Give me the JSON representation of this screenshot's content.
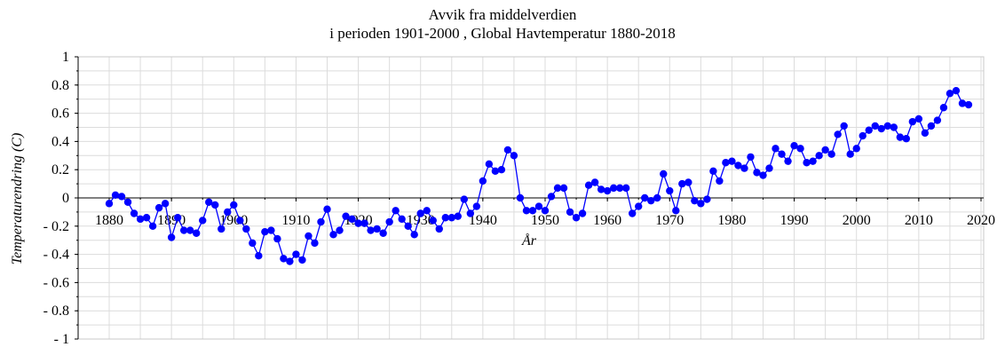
{
  "chart_data": {
    "type": "line",
    "title": "Avvik fra middelverdien",
    "subtitle": "i perioden 1901-2000 , Global Havtemperatur 1880-2018",
    "xlabel": "År",
    "ylabel": "Temperaturendring (C)",
    "xlim": [
      1880,
      2020
    ],
    "ylim": [
      -1,
      1
    ],
    "x_ticks": [
      "1880",
      "1890",
      "1900",
      "1910",
      "1920",
      "1930",
      "1940",
      "1950",
      "1960",
      "1970",
      "1980",
      "1990",
      "2000",
      "2010",
      "2020"
    ],
    "y_ticks": [
      "1",
      "0.8",
      "0.6",
      "0.4",
      "0.2",
      "0",
      "- 0.2",
      "- 0.4",
      "- 0.6",
      "- 0.8",
      "- 1"
    ],
    "grid": true,
    "line_color": "#0000ff",
    "marker_color": "#0000ff",
    "x": [
      1880,
      1881,
      1882,
      1883,
      1884,
      1885,
      1886,
      1887,
      1888,
      1889,
      1890,
      1891,
      1892,
      1893,
      1894,
      1895,
      1896,
      1897,
      1898,
      1899,
      1900,
      1901,
      1902,
      1903,
      1904,
      1905,
      1906,
      1907,
      1908,
      1909,
      1910,
      1911,
      1912,
      1913,
      1914,
      1915,
      1916,
      1917,
      1918,
      1919,
      1920,
      1921,
      1922,
      1923,
      1924,
      1925,
      1926,
      1927,
      1928,
      1929,
      1930,
      1931,
      1932,
      1933,
      1934,
      1935,
      1936,
      1937,
      1938,
      1939,
      1940,
      1941,
      1942,
      1943,
      1944,
      1945,
      1946,
      1947,
      1948,
      1949,
      1950,
      1951,
      1952,
      1953,
      1954,
      1955,
      1956,
      1957,
      1958,
      1959,
      1960,
      1961,
      1962,
      1963,
      1964,
      1965,
      1966,
      1967,
      1968,
      1969,
      1970,
      1971,
      1972,
      1973,
      1974,
      1975,
      1976,
      1977,
      1978,
      1979,
      1980,
      1981,
      1982,
      1983,
      1984,
      1985,
      1986,
      1987,
      1988,
      1989,
      1990,
      1991,
      1992,
      1993,
      1994,
      1995,
      1996,
      1997,
      1998,
      1999,
      2000,
      2001,
      2002,
      2003,
      2004,
      2005,
      2006,
      2007,
      2008,
      2009,
      2010,
      2011,
      2012,
      2013,
      2014,
      2015,
      2016,
      2017,
      2018
    ],
    "values": [
      -0.04,
      0.02,
      0.01,
      -0.03,
      -0.11,
      -0.15,
      -0.14,
      -0.2,
      -0.07,
      -0.04,
      -0.28,
      -0.14,
      -0.23,
      -0.23,
      -0.25,
      -0.16,
      -0.03,
      -0.05,
      -0.22,
      -0.1,
      -0.05,
      -0.16,
      -0.22,
      -0.32,
      -0.41,
      -0.24,
      -0.23,
      -0.29,
      -0.43,
      -0.45,
      -0.4,
      -0.44,
      -0.27,
      -0.32,
      -0.17,
      -0.08,
      -0.26,
      -0.23,
      -0.13,
      -0.15,
      -0.18,
      -0.18,
      -0.23,
      -0.22,
      -0.25,
      -0.17,
      -0.09,
      -0.15,
      -0.2,
      -0.26,
      -0.11,
      -0.09,
      -0.16,
      -0.22,
      -0.14,
      -0.14,
      -0.13,
      -0.01,
      -0.11,
      -0.06,
      0.12,
      0.24,
      0.19,
      0.2,
      0.34,
      0.3,
      0.0,
      -0.09,
      -0.09,
      -0.06,
      -0.09,
      0.01,
      0.07,
      0.07,
      -0.1,
      -0.14,
      -0.11,
      0.09,
      0.11,
      0.06,
      0.05,
      0.07,
      0.07,
      0.07,
      -0.11,
      -0.06,
      0.0,
      -0.02,
      0.0,
      0.17,
      0.05,
      -0.09,
      0.1,
      0.11,
      -0.02,
      -0.04,
      -0.01,
      0.19,
      0.12,
      0.25,
      0.26,
      0.23,
      0.21,
      0.29,
      0.18,
      0.16,
      0.21,
      0.35,
      0.31,
      0.26,
      0.37,
      0.35,
      0.25,
      0.26,
      0.3,
      0.34,
      0.31,
      0.45,
      0.51,
      0.31,
      0.35,
      0.44,
      0.48,
      0.51,
      0.49,
      0.51,
      0.5,
      0.43,
      0.42,
      0.54,
      0.56,
      0.46,
      0.51,
      0.55,
      0.64,
      0.74,
      0.76,
      0.67,
      0.66
    ]
  }
}
